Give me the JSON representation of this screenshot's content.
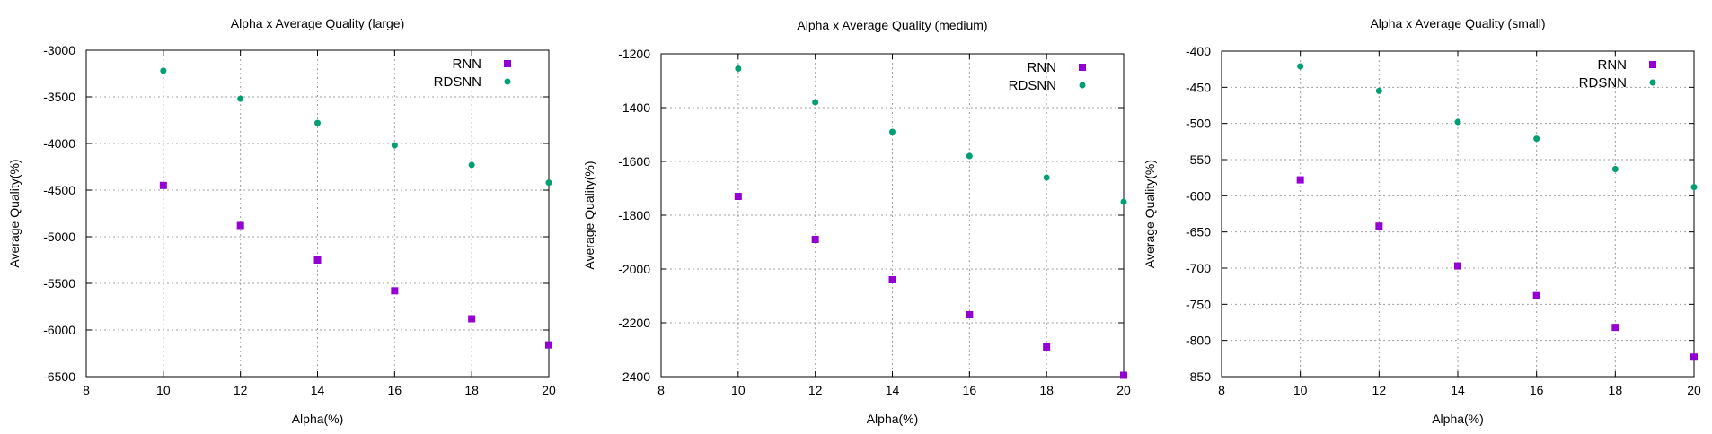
{
  "colors": {
    "rnn": "#9400d3",
    "rdsnn": "#009e73",
    "grid": "#a0a0a0",
    "axis": "#000000"
  },
  "chart_data": [
    {
      "type": "scatter",
      "title": "Alpha x Average Quality (large)",
      "xlabel": "Alpha(%)",
      "ylabel": "Average Quality(%)",
      "xlim": [
        8,
        20
      ],
      "ylim": [
        -6500,
        -3000
      ],
      "xticks": [
        8,
        10,
        12,
        14,
        16,
        18,
        20
      ],
      "yticks": [
        -6500,
        -6000,
        -5500,
        -5000,
        -4500,
        -4000,
        -3500,
        -3000
      ],
      "grid": true,
      "legend_position": "top-right",
      "series": [
        {
          "name": "RNN",
          "marker": "square",
          "color": "#9400d3",
          "x": [
            10,
            12,
            14,
            16,
            18,
            20
          ],
          "y": [
            -4450,
            -4880,
            -5250,
            -5580,
            -5880,
            -6160
          ]
        },
        {
          "name": "RDSNN",
          "marker": "circle",
          "color": "#009e73",
          "x": [
            10,
            12,
            14,
            16,
            18,
            20
          ],
          "y": [
            -3220,
            -3520,
            -3780,
            -4020,
            -4230,
            -4420
          ]
        }
      ]
    },
    {
      "type": "scatter",
      "title": "Alpha x Average Quality (medium)",
      "xlabel": "Alpha(%)",
      "ylabel": "Average Quality(%)",
      "xlim": [
        8,
        20
      ],
      "ylim": [
        -2400,
        -1200
      ],
      "xticks": [
        8,
        10,
        12,
        14,
        16,
        18,
        20
      ],
      "yticks": [
        -2400,
        -2200,
        -2000,
        -1800,
        -1600,
        -1400,
        -1200
      ],
      "grid": true,
      "legend_position": "top-right",
      "series": [
        {
          "name": "RNN",
          "marker": "square",
          "color": "#9400d3",
          "x": [
            10,
            12,
            14,
            16,
            18,
            20
          ],
          "y": [
            -1730,
            -1890,
            -2040,
            -2170,
            -2290,
            -2395
          ]
        },
        {
          "name": "RDSNN",
          "marker": "circle",
          "color": "#009e73",
          "x": [
            10,
            12,
            14,
            16,
            18,
            20
          ],
          "y": [
            -1255,
            -1380,
            -1490,
            -1580,
            -1660,
            -1750
          ]
        }
      ]
    },
    {
      "type": "scatter",
      "title": "Alpha x Average Quality (small)",
      "xlabel": "Alpha(%)",
      "ylabel": "Average Quality(%)",
      "xlim": [
        8,
        20
      ],
      "ylim": [
        -850,
        -400
      ],
      "xticks": [
        8,
        10,
        12,
        14,
        16,
        18,
        20
      ],
      "yticks": [
        -850,
        -800,
        -750,
        -700,
        -650,
        -600,
        -550,
        -500,
        -450,
        -400
      ],
      "grid": true,
      "legend_position": "top-right",
      "series": [
        {
          "name": "RNN",
          "marker": "square",
          "color": "#9400d3",
          "x": [
            10,
            12,
            14,
            16,
            18,
            20
          ],
          "y": [
            -578,
            -642,
            -697,
            -738,
            -782,
            -823
          ]
        },
        {
          "name": "RDSNN",
          "marker": "circle",
          "color": "#009e73",
          "x": [
            10,
            12,
            14,
            16,
            18,
            20
          ],
          "y": [
            -421,
            -455,
            -498,
            -521,
            -563,
            -588
          ]
        }
      ]
    }
  ]
}
